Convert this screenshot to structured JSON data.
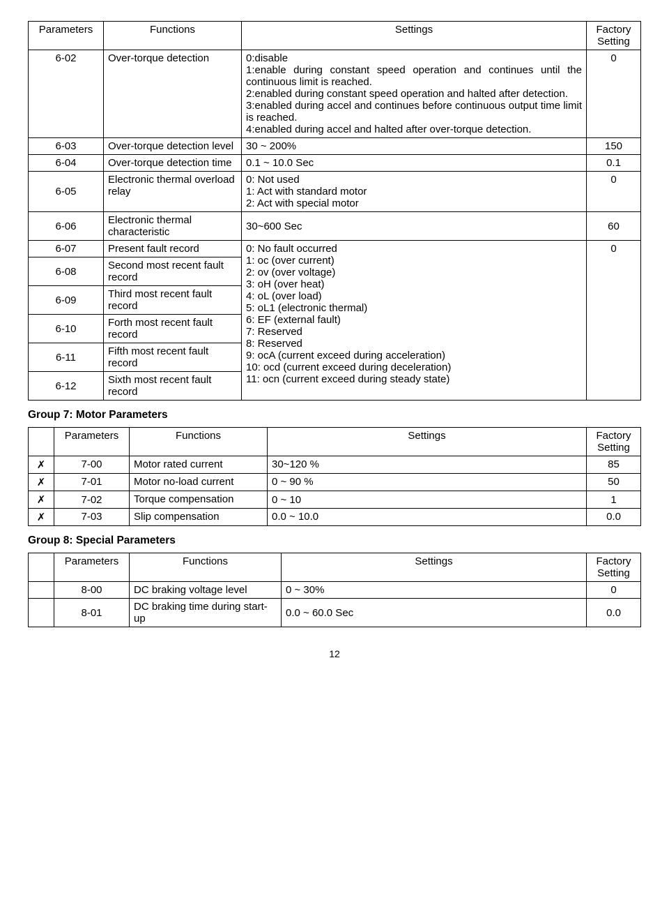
{
  "table6": {
    "headers": {
      "parameters": "Parameters",
      "functions": "Functions",
      "settings": "Settings",
      "factory": "Factory Setting"
    },
    "rows": [
      {
        "param": "6-02",
        "func": "Over-torque detection",
        "settings": "0:disable\n1:enable during constant speed operation and continues until the continuous limit is reached.\n2:enabled during constant speed operation and halted after detection.\n3:enabled during accel and continues before continuous output time limit is reached.\n4:enabled during accel and halted after over-torque detection.",
        "factory": "0"
      },
      {
        "param": "6-03",
        "func": "Over-torque detection level",
        "settings": "30 ~ 200%",
        "factory": "150"
      },
      {
        "param": "6-04",
        "func": "Over-torque detection time",
        "settings": "0.1 ~ 10.0 Sec",
        "factory": "0.1"
      },
      {
        "param": "6-05",
        "func": "Electronic thermal overload relay",
        "settings": "0: Not used\n1: Act with standard motor\n2: Act with special motor",
        "factory": "0"
      },
      {
        "param": "6-06",
        "func": "Electronic thermal characteristic",
        "settings": "30~600 Sec",
        "factory": "60"
      }
    ],
    "fault_section": {
      "params": [
        "6-07",
        "6-08",
        "6-09",
        "6-10",
        "6-11",
        "6-12"
      ],
      "funcs": [
        "Present fault record",
        "Second most recent fault record",
        "Third most recent fault record",
        "Forth most recent fault record",
        "Fifth most recent fault record",
        "Sixth most recent fault record"
      ],
      "settings": "0: No fault occurred\n1: oc (over current)\n2: ov (over voltage)\n3: oH (over heat)\n4: oL (over load)\n5: oL1 (electronic thermal)\n6: EF (external fault)\n7: Reserved\n8: Reserved\n9: ocA (current exceed during acceleration)\n10: ocd (current exceed during deceleration)\n11: ocn (current exceed during steady state)",
      "factory": "0"
    }
  },
  "group7": {
    "title": "Group 7: Motor Parameters",
    "headers": {
      "parameters": "Parameters",
      "functions": "Functions",
      "settings": "Settings",
      "factory": "Factory Setting"
    },
    "icon": "✗",
    "rows": [
      {
        "param": "7-00",
        "func": "Motor rated current",
        "settings": "30~120 %",
        "factory": "85"
      },
      {
        "param": "7-01",
        "func": "Motor no-load current",
        "settings": "0 ~ 90 %",
        "factory": "50"
      },
      {
        "param": "7-02",
        "func": "Torque compensation",
        "settings": "0 ~ 10",
        "factory": "1"
      },
      {
        "param": "7-03",
        "func": "Slip compensation",
        "settings": "0.0 ~ 10.0",
        "factory": "0.0"
      }
    ]
  },
  "group8": {
    "title": "Group 8: Special Parameters",
    "headers": {
      "parameters": "Parameters",
      "functions": "Functions",
      "settings": "Settings",
      "factory": "Factory Setting"
    },
    "rows": [
      {
        "param": "8-00",
        "func": "DC braking voltage level",
        "settings": "0 ~ 30%",
        "factory": "0"
      },
      {
        "param": "8-01",
        "func": "DC braking time during start-up",
        "settings": "0.0 ~ 60.0 Sec",
        "factory": "0.0"
      }
    ]
  },
  "pageNumber": "12"
}
